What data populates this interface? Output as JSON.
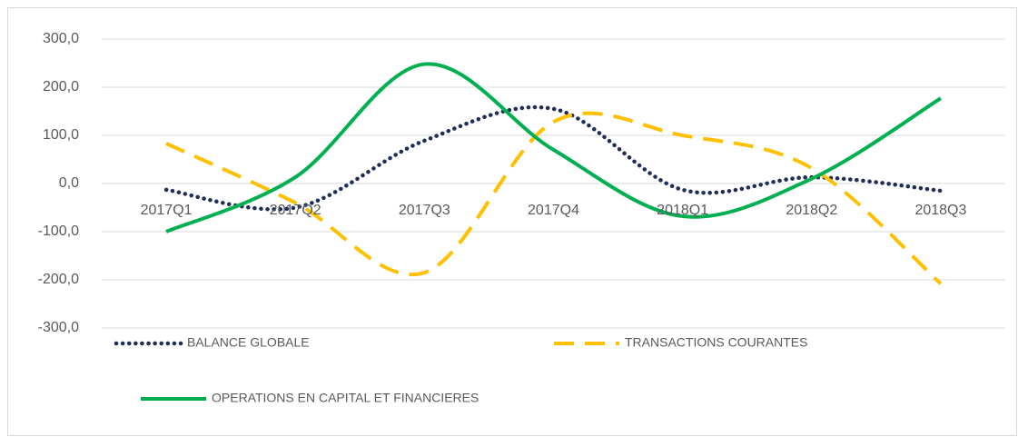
{
  "chart_data": {
    "type": "line",
    "categories": [
      "2017Q1",
      "2017Q2",
      "2017Q3",
      "2017Q4",
      "2018Q1",
      "2018Q2",
      "2018Q3"
    ],
    "series": [
      {
        "name": "BALANCE GLOBALE",
        "color": "#1f2d5a",
        "style": "dotted",
        "values": [
          -13,
          -50,
          89,
          155,
          -13,
          13,
          -15
        ]
      },
      {
        "name": "TRANSACTIONS COURANTES",
        "color": "#ffc000",
        "style": "dashed",
        "values": [
          83,
          -40,
          -185,
          128,
          100,
          32,
          -208
        ]
      },
      {
        "name": "OPERATIONS EN CAPITAL ET FINANCIERES",
        "color": "#00b050",
        "style": "solid",
        "values": [
          -100,
          13,
          248,
          70,
          -68,
          10,
          177
        ]
      }
    ],
    "ylim": [
      -300,
      300
    ],
    "yticks": [
      {
        "value": -300,
        "label": "-300,0"
      },
      {
        "value": -200,
        "label": "-200,0"
      },
      {
        "value": -100,
        "label": "-100,0"
      },
      {
        "value": 0,
        "label": "0,0"
      },
      {
        "value": 100,
        "label": "100,0"
      },
      {
        "value": 200,
        "label": "200,0"
      },
      {
        "value": 300,
        "label": "300,0"
      }
    ],
    "grid": true
  }
}
